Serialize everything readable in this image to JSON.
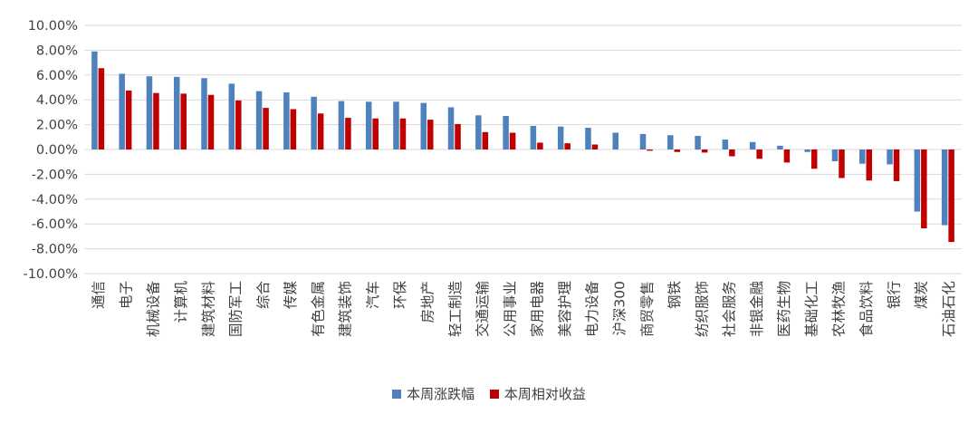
{
  "chart_data": {
    "type": "bar",
    "categories": [
      "通信",
      "电子",
      "机械设备",
      "计算机",
      "建筑材料",
      "国防军工",
      "综合",
      "传媒",
      "有色金属",
      "建筑装饰",
      "汽车",
      "环保",
      "房地产",
      "轻工制造",
      "交通运输",
      "公用事业",
      "家用电器",
      "美容护理",
      "电力设备",
      "沪深300",
      "商贸零售",
      "钢铁",
      "纺织服饰",
      "社会服务",
      "非银金融",
      "医药生物",
      "基础化工",
      "农林牧渔",
      "食品饮料",
      "银行",
      "煤炭",
      "石油石化"
    ],
    "series": [
      {
        "name": "本周涨跌幅",
        "color": "#4F81BD",
        "values": [
          7.9,
          6.1,
          5.9,
          5.85,
          5.75,
          5.3,
          4.7,
          4.6,
          4.25,
          3.9,
          3.85,
          3.85,
          3.75,
          3.4,
          2.75,
          2.7,
          1.9,
          1.85,
          1.75,
          1.35,
          1.25,
          1.15,
          1.1,
          0.8,
          0.6,
          0.3,
          -0.2,
          -0.95,
          -1.15,
          -1.2,
          -5.0,
          -6.1
        ]
      },
      {
        "name": "本周相对收益",
        "color": "#C00000",
        "values": [
          6.55,
          4.75,
          4.55,
          4.5,
          4.4,
          3.95,
          3.35,
          3.25,
          2.9,
          2.55,
          2.5,
          2.5,
          2.4,
          2.05,
          1.4,
          1.35,
          0.55,
          0.5,
          0.4,
          0.0,
          -0.1,
          -0.2,
          -0.25,
          -0.55,
          -0.75,
          -1.05,
          -1.55,
          -2.3,
          -2.5,
          -2.55,
          -6.35,
          -7.45
        ]
      }
    ],
    "yticks": [
      "10.00%",
      "8.00%",
      "6.00%",
      "4.00%",
      "2.00%",
      "0.00%",
      "-2.00%",
      "-4.00%",
      "-6.00%",
      "-8.00%",
      "-10.00%"
    ],
    "ylim": [
      -10,
      10
    ],
    "grid": true,
    "legend_position": "bottom"
  }
}
